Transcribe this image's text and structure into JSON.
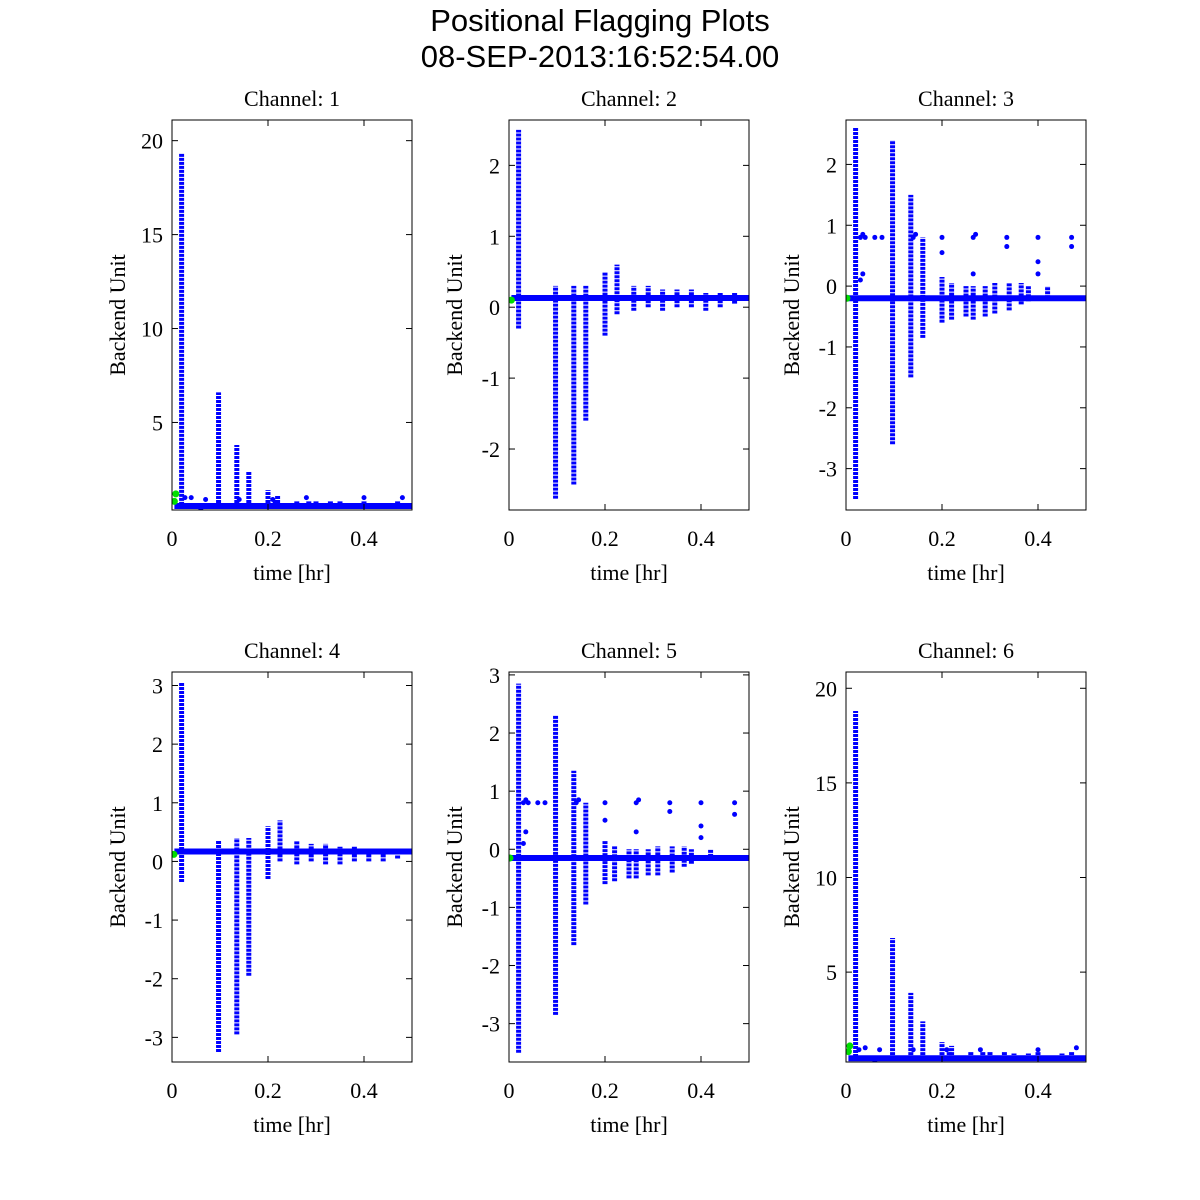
{
  "chart_data": {
    "type": "scatter",
    "title": "Positional Flagging Plots",
    "subtitle": "08-SEP-2013:16:52:54.00",
    "colors": {
      "data": "#0000ff",
      "flagged": "#00dd00",
      "axes": "#000000"
    },
    "panels": [
      {
        "title": "Channel: 1",
        "xlabel": "time [hr]",
        "ylabel": "Backend Unit",
        "xlim": [
          0,
          0.5
        ],
        "ylim": [
          0.34,
          21.1
        ],
        "xticks": [
          0,
          0.2,
          0.4
        ],
        "xtick_labels": [
          "0",
          "0.2",
          "0.4"
        ],
        "yticks": [
          5,
          10,
          15,
          20
        ],
        "ytick_labels": [
          "5",
          "10",
          "15",
          "20"
        ],
        "baseline": 0.55,
        "spikes": [
          [
            0.02,
            0.4,
            19.3
          ],
          [
            0.097,
            0.5,
            6.6
          ],
          [
            0.135,
            0.5,
            3.8
          ],
          [
            0.16,
            0.5,
            2.4
          ],
          [
            0.2,
            0.5,
            1.4
          ],
          [
            0.215,
            0.5,
            0.9
          ],
          [
            0.22,
            0.5,
            1.1
          ],
          [
            0.26,
            0.5,
            0.8
          ],
          [
            0.285,
            0.5,
            0.8
          ],
          [
            0.3,
            0.5,
            0.8
          ],
          [
            0.33,
            0.5,
            0.8
          ],
          [
            0.35,
            0.5,
            0.8
          ],
          [
            0.38,
            0.5,
            0.7
          ],
          [
            0.4,
            0.5,
            0.8
          ],
          [
            0.45,
            0.5,
            0.7
          ],
          [
            0.47,
            0.5,
            0.8
          ]
        ],
        "outliers": [
          [
            0.027,
            1.0
          ],
          [
            0.04,
            1.0
          ],
          [
            0.07,
            0.9
          ],
          [
            0.14,
            0.9
          ],
          [
            0.21,
            0.9
          ],
          [
            0.28,
            1.0
          ],
          [
            0.4,
            1.0
          ],
          [
            0.48,
            1.0
          ],
          [
            0.06,
            0.35
          ]
        ],
        "flagged": [
          [
            0.005,
            0.8
          ],
          [
            0.008,
            1.2
          ]
        ]
      },
      {
        "title": "Channel: 2",
        "xlabel": "time [hr]",
        "ylabel": "Backend Unit",
        "xlim": [
          0,
          0.5
        ],
        "ylim": [
          -2.86,
          2.64
        ],
        "xticks": [
          0,
          0.2,
          0.4
        ],
        "xtick_labels": [
          "0",
          "0.2",
          "0.4"
        ],
        "yticks": [
          -2,
          -1,
          0,
          1,
          2
        ],
        "ytick_labels": [
          "-2",
          "-1",
          "0",
          "1",
          "2"
        ],
        "baseline": 0.13,
        "spikes": [
          [
            0.02,
            -0.3,
            2.5
          ],
          [
            0.097,
            -2.7,
            0.3
          ],
          [
            0.135,
            -2.5,
            0.3
          ],
          [
            0.16,
            -1.6,
            0.3
          ],
          [
            0.2,
            -0.4,
            0.5
          ],
          [
            0.225,
            -0.1,
            0.6
          ],
          [
            0.26,
            -0.05,
            0.3
          ],
          [
            0.29,
            0.0,
            0.3
          ],
          [
            0.32,
            -0.05,
            0.25
          ],
          [
            0.35,
            0.0,
            0.25
          ],
          [
            0.38,
            0.0,
            0.25
          ],
          [
            0.41,
            -0.05,
            0.2
          ],
          [
            0.44,
            0.0,
            0.2
          ],
          [
            0.47,
            0.05,
            0.2
          ]
        ],
        "outliers": [],
        "flagged": [
          [
            0.005,
            0.1
          ]
        ]
      },
      {
        "title": "Channel: 3",
        "xlabel": "time [hr]",
        "ylabel": "Backend Unit",
        "xlim": [
          0,
          0.5
        ],
        "ylim": [
          -3.68,
          2.73
        ],
        "xticks": [
          0,
          0.2,
          0.4
        ],
        "xtick_labels": [
          "0",
          "0.2",
          "0.4"
        ],
        "yticks": [
          -3,
          -2,
          -1,
          0,
          1,
          2
        ],
        "ytick_labels": [
          "-3",
          "-2",
          "-1",
          "0",
          "1",
          "2"
        ],
        "baseline": -0.2,
        "spikes": [
          [
            0.02,
            -3.5,
            2.6
          ],
          [
            0.097,
            -2.6,
            2.4
          ],
          [
            0.135,
            -1.5,
            1.5
          ],
          [
            0.16,
            -0.85,
            0.8
          ],
          [
            0.2,
            -0.6,
            0.15
          ],
          [
            0.22,
            -0.55,
            0.05
          ],
          [
            0.25,
            -0.5,
            0.0
          ],
          [
            0.265,
            -0.55,
            0.0
          ],
          [
            0.29,
            -0.5,
            0.0
          ],
          [
            0.31,
            -0.45,
            0.05
          ],
          [
            0.34,
            -0.4,
            0.05
          ],
          [
            0.365,
            -0.3,
            0.05
          ],
          [
            0.38,
            -0.25,
            0.0
          ],
          [
            0.42,
            -0.2,
            0.0
          ]
        ],
        "outliers": [
          [
            0.03,
            0.8
          ],
          [
            0.035,
            0.85
          ],
          [
            0.04,
            0.8
          ],
          [
            0.03,
            0.1
          ],
          [
            0.035,
            0.2
          ],
          [
            0.06,
            0.8
          ],
          [
            0.075,
            0.8
          ],
          [
            0.14,
            0.8
          ],
          [
            0.145,
            0.85
          ],
          [
            0.2,
            0.8
          ],
          [
            0.2,
            0.55
          ],
          [
            0.265,
            0.8
          ],
          [
            0.27,
            0.85
          ],
          [
            0.265,
            0.2
          ],
          [
            0.335,
            0.8
          ],
          [
            0.335,
            0.65
          ],
          [
            0.4,
            0.8
          ],
          [
            0.4,
            0.4
          ],
          [
            0.4,
            0.2
          ],
          [
            0.47,
            0.8
          ],
          [
            0.47,
            0.65
          ]
        ],
        "flagged": [
          [
            0.002,
            -0.2
          ]
        ]
      },
      {
        "title": "Channel: 4",
        "xlabel": "time [hr]",
        "ylabel": "Backend Unit",
        "xlim": [
          0,
          0.5
        ],
        "ylim": [
          -3.42,
          3.23
        ],
        "xticks": [
          0,
          0.2,
          0.4
        ],
        "xtick_labels": [
          "0",
          "0.2",
          "0.4"
        ],
        "yticks": [
          -3,
          -2,
          -1,
          0,
          1,
          2,
          3
        ],
        "ytick_labels": [
          "-3",
          "-2",
          "-1",
          "0",
          "1",
          "2",
          "3"
        ],
        "baseline": 0.17,
        "spikes": [
          [
            0.02,
            -0.35,
            3.05
          ],
          [
            0.097,
            -3.25,
            0.35
          ],
          [
            0.135,
            -2.95,
            0.4
          ],
          [
            0.16,
            -1.95,
            0.4
          ],
          [
            0.2,
            -0.3,
            0.6
          ],
          [
            0.225,
            0.0,
            0.7
          ],
          [
            0.26,
            -0.05,
            0.35
          ],
          [
            0.29,
            0.0,
            0.3
          ],
          [
            0.32,
            -0.05,
            0.3
          ],
          [
            0.35,
            -0.05,
            0.25
          ],
          [
            0.38,
            0.0,
            0.25
          ],
          [
            0.41,
            0.0,
            0.2
          ],
          [
            0.44,
            0.0,
            0.2
          ],
          [
            0.47,
            0.05,
            0.2
          ]
        ],
        "outliers": [],
        "flagged": [
          [
            0.004,
            0.12
          ]
        ]
      },
      {
        "title": "Channel: 5",
        "xlabel": "time [hr]",
        "ylabel": "Backend Unit",
        "xlim": [
          0,
          0.5
        ],
        "ylim": [
          -3.66,
          3.05
        ],
        "xticks": [
          0,
          0.2,
          0.4
        ],
        "xtick_labels": [
          "0",
          "0.2",
          "0.4"
        ],
        "yticks": [
          -3,
          -2,
          -1,
          0,
          1,
          2,
          3
        ],
        "ytick_labels": [
          "-3",
          "-2",
          "-1",
          "0",
          "1",
          "2",
          "3"
        ],
        "baseline": -0.15,
        "spikes": [
          [
            0.02,
            -3.5,
            2.85
          ],
          [
            0.097,
            -2.85,
            2.3
          ],
          [
            0.135,
            -1.65,
            1.35
          ],
          [
            0.16,
            -0.95,
            0.8
          ],
          [
            0.2,
            -0.6,
            0.15
          ],
          [
            0.22,
            -0.55,
            0.05
          ],
          [
            0.25,
            -0.5,
            0.0
          ],
          [
            0.265,
            -0.5,
            0.0
          ],
          [
            0.29,
            -0.45,
            0.0
          ],
          [
            0.31,
            -0.45,
            0.05
          ],
          [
            0.34,
            -0.4,
            0.05
          ],
          [
            0.365,
            -0.3,
            0.05
          ],
          [
            0.38,
            -0.25,
            0.0
          ],
          [
            0.42,
            -0.2,
            0.0
          ]
        ],
        "outliers": [
          [
            0.03,
            0.8
          ],
          [
            0.035,
            0.85
          ],
          [
            0.04,
            0.8
          ],
          [
            0.03,
            0.1
          ],
          [
            0.035,
            0.3
          ],
          [
            0.06,
            0.8
          ],
          [
            0.075,
            0.8
          ],
          [
            0.14,
            0.8
          ],
          [
            0.145,
            0.85
          ],
          [
            0.2,
            0.8
          ],
          [
            0.2,
            0.5
          ],
          [
            0.265,
            0.8
          ],
          [
            0.27,
            0.85
          ],
          [
            0.265,
            0.3
          ],
          [
            0.335,
            0.8
          ],
          [
            0.335,
            0.65
          ],
          [
            0.4,
            0.8
          ],
          [
            0.4,
            0.4
          ],
          [
            0.4,
            0.2
          ],
          [
            0.47,
            0.8
          ],
          [
            0.47,
            0.6
          ]
        ],
        "flagged": [
          [
            0.002,
            -0.15
          ]
        ]
      },
      {
        "title": "Channel: 6",
        "xlabel": "time [hr]",
        "ylabel": "Backend Unit",
        "xlim": [
          0,
          0.5
        ],
        "ylim": [
          0.25,
          20.86
        ],
        "xticks": [
          0,
          0.2,
          0.4
        ],
        "xtick_labels": [
          "0",
          "0.2",
          "0.4"
        ],
        "yticks": [
          5,
          10,
          15,
          20
        ],
        "ytick_labels": [
          "5",
          "10",
          "15",
          "20"
        ],
        "baseline": 0.45,
        "spikes": [
          [
            0.02,
            0.3,
            18.8
          ],
          [
            0.097,
            0.4,
            6.8
          ],
          [
            0.135,
            0.4,
            3.9
          ],
          [
            0.16,
            0.4,
            2.4
          ],
          [
            0.2,
            0.4,
            1.3
          ],
          [
            0.215,
            0.4,
            0.9
          ],
          [
            0.22,
            0.4,
            1.1
          ],
          [
            0.26,
            0.4,
            0.8
          ],
          [
            0.285,
            0.4,
            0.8
          ],
          [
            0.3,
            0.4,
            0.8
          ],
          [
            0.33,
            0.4,
            0.8
          ],
          [
            0.35,
            0.4,
            0.7
          ],
          [
            0.38,
            0.4,
            0.7
          ],
          [
            0.4,
            0.4,
            0.8
          ],
          [
            0.45,
            0.4,
            0.7
          ],
          [
            0.47,
            0.4,
            0.8
          ]
        ],
        "outliers": [
          [
            0.027,
            0.9
          ],
          [
            0.04,
            1.0
          ],
          [
            0.07,
            0.9
          ],
          [
            0.14,
            0.9
          ],
          [
            0.21,
            0.9
          ],
          [
            0.28,
            0.9
          ],
          [
            0.4,
            0.9
          ],
          [
            0.48,
            1.0
          ],
          [
            0.06,
            0.25
          ]
        ],
        "flagged": [
          [
            0.005,
            0.8
          ],
          [
            0.008,
            1.1
          ]
        ]
      }
    ]
  }
}
